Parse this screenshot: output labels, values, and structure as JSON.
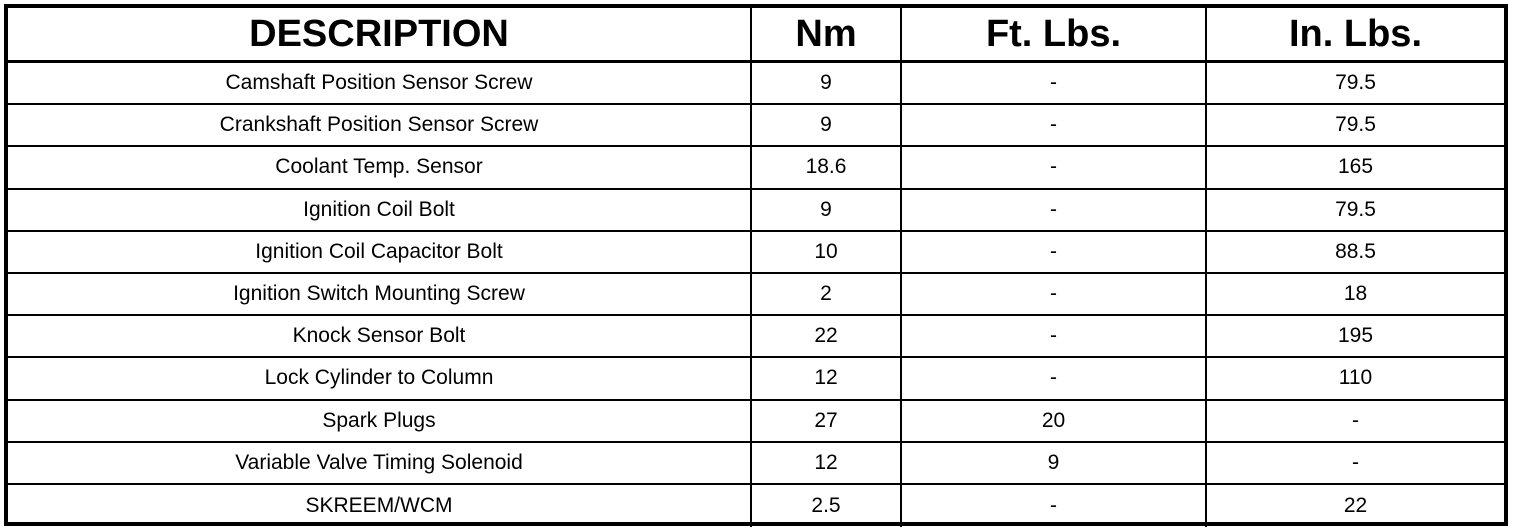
{
  "table": {
    "headers": [
      "DESCRIPTION",
      "Nm",
      "Ft. Lbs.",
      "In. Lbs."
    ],
    "rows": [
      [
        "Camshaft Position Sensor Screw",
        "9",
        "-",
        "79.5"
      ],
      [
        "Crankshaft Position Sensor Screw",
        "9",
        "-",
        "79.5"
      ],
      [
        "Coolant Temp. Sensor",
        "18.6",
        "-",
        "165"
      ],
      [
        "Ignition Coil Bolt",
        "9",
        "-",
        "79.5"
      ],
      [
        "Ignition Coil Capacitor Bolt",
        "10",
        "-",
        "88.5"
      ],
      [
        "Ignition Switch Mounting Screw",
        "2",
        "-",
        "18"
      ],
      [
        "Knock Sensor Bolt",
        "22",
        "-",
        "195"
      ],
      [
        "Lock Cylinder to Column",
        "12",
        "-",
        "110"
      ],
      [
        "Spark Plugs",
        "27",
        "20",
        "-"
      ],
      [
        "Variable Valve Timing Solenoid",
        "12",
        "9",
        "-"
      ],
      [
        "SKREEM/WCM",
        "2.5",
        "-",
        "22"
      ]
    ]
  }
}
